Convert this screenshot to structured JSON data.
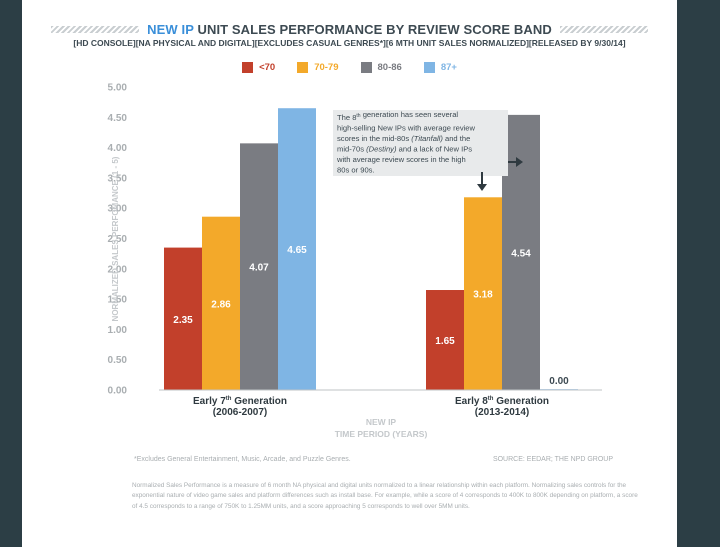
{
  "title": {
    "accent": "NEW IP",
    "rest": "UNIT SALES PERFORMANCE BY REVIEW SCORE BAND"
  },
  "subtitle": "[HD CONSOLE][NA PHYSICAL AND DIGITAL][EXCLUDES CASUAL GENRES*][6 MTH UNIT SALES NORMALIZED][RELEASED BY 9/30/14]",
  "chart_data": {
    "type": "bar",
    "categories": [
      {
        "line1": "Early 7",
        "sup": "th",
        "line1_tail": " Generation",
        "line2": "(2006-2007)"
      },
      {
        "line1": "Early 8",
        "sup": "th",
        "line1_tail": " Generation",
        "line2": "(2013-2014)"
      }
    ],
    "series": [
      {
        "name": "<70",
        "color": "#c2402b",
        "values": [
          2.35,
          1.65
        ],
        "labels": [
          "2.35",
          "1.65"
        ]
      },
      {
        "name": "70-79",
        "color": "#f3a92a",
        "values": [
          2.86,
          3.18
        ],
        "labels": [
          "2.86",
          "3.18"
        ]
      },
      {
        "name": "80-86",
        "color": "#7a7c82",
        "values": [
          4.07,
          4.54
        ],
        "labels": [
          "4.07",
          "4.54"
        ]
      },
      {
        "name": "87+",
        "color": "#7fb5e4",
        "values": [
          4.65,
          0.0
        ],
        "labels": [
          "4.65",
          "0.00"
        ]
      }
    ],
    "ylim": [
      0,
      5
    ],
    "yticks": [
      "0.00",
      "0.50",
      "1.00",
      "1.50",
      "2.00",
      "2.50",
      "3.00",
      "3.50",
      "4.00",
      "4.50",
      "5.00"
    ],
    "ylabel": "NORMALIZED SALES PERFOMANCE (1 - 5)",
    "xlabel_line1": "NEW IP",
    "xlabel_line2": "TIME PERIOD (YEARS)",
    "legend_position": "top-center",
    "grid": false,
    "annotation": {
      "segments": [
        {
          "text": "The 8",
          "style": "normal"
        },
        {
          "text": "th",
          "style": "sup"
        },
        {
          "text": " generation has seen several high-selling New IPs with average review scores in the mid-80s ",
          "style": "normal"
        },
        {
          "text": "(Titanfall)",
          "style": "italic"
        },
        {
          "text": " and the mid-70s ",
          "style": "normal"
        },
        {
          "text": "(Destiny)",
          "style": "italic"
        },
        {
          "text": " and a lack of New IPs with average review scores in the high 80s or 90s.",
          "style": "normal"
        }
      ]
    }
  },
  "footnote_left": "*Excludes General Entertainment, Music, Arcade, and Puzzle Genres.",
  "footnote_right": "SOURCE: EEDAR; THE NPD GROUP",
  "explanation": "Normalized Sales Performance is a measure of 6 month NA physical and digital units normalized to a linear relationship within each platform. Normalizing sales controls for the exponential nature of video game sales and platform differences such as install base.  For example, while a score of 4 corresponds to 400K to 800K depending on platform, a score of 4.5 corresponds to a range of 750K to 1.25MM units, and a score approaching 5 corresponds to well over 5MM units."
}
